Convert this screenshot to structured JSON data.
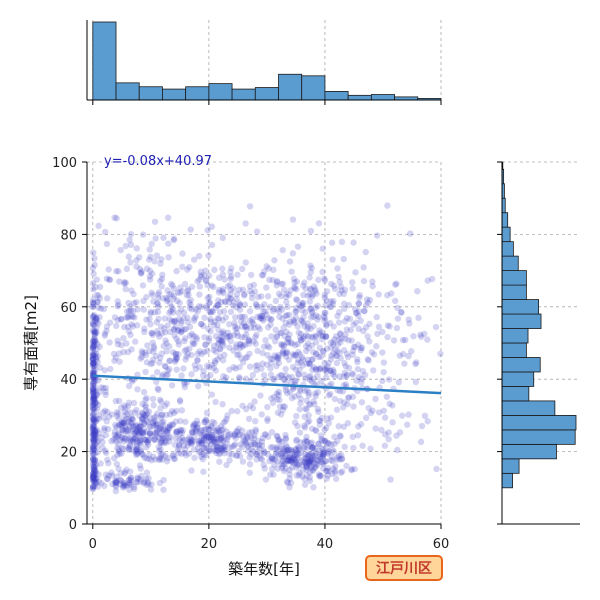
{
  "chart_data": {
    "type": "scatter",
    "xlabel": "築年数[年]",
    "ylabel": "専有面積[m2]",
    "xlim": [
      -1,
      60
    ],
    "ylim": [
      0,
      100
    ],
    "x_ticks": [
      0,
      20,
      40,
      60
    ],
    "y_ticks": [
      0,
      20,
      40,
      60,
      80,
      100
    ],
    "grid": true,
    "annotation": "y=-0.08x+40.97",
    "badge": "江戸川区",
    "regression": {
      "slope": -0.08,
      "intercept": 40.97,
      "x_range": [
        0,
        60
      ]
    },
    "colors": {
      "points": "#3b3bc4",
      "line": "#2b7fc4",
      "bars": "#5a9bd0",
      "badge_bg": "#ffd59a",
      "badge_border": "#e8651e",
      "badge_text": "#c0392b"
    },
    "clusters": [
      {
        "cx": 0,
        "cy": 30,
        "sx": 0.4,
        "sy": 18,
        "n": 260
      },
      {
        "cx": 8,
        "cy": 25,
        "sx": 4,
        "sy": 4,
        "n": 280
      },
      {
        "cx": 20,
        "cy": 23,
        "sx": 5,
        "sy": 3,
        "n": 240
      },
      {
        "cx": 36,
        "cy": 18,
        "sx": 4,
        "sy": 3,
        "n": 260
      },
      {
        "cx": 25,
        "cy": 55,
        "sx": 11,
        "sy": 10,
        "n": 520
      },
      {
        "cx": 10,
        "cy": 55,
        "sx": 7,
        "sy": 14,
        "n": 280
      },
      {
        "cx": 37,
        "cy": 45,
        "sx": 5,
        "sy": 12,
        "n": 320
      },
      {
        "cx": 45,
        "cy": 45,
        "sx": 9,
        "sy": 18,
        "n": 180
      },
      {
        "cx": 5,
        "cy": 12,
        "sx": 3,
        "sy": 1.5,
        "n": 80
      }
    ],
    "x_hist": {
      "bin_edges": [
        0,
        4,
        8,
        12,
        16,
        20,
        24,
        28,
        32,
        36,
        40,
        44,
        48,
        52,
        56,
        60
      ],
      "counts": [
        100,
        22,
        17,
        14,
        17,
        21,
        14,
        16,
        33,
        31,
        11,
        6,
        7,
        4,
        2
      ]
    },
    "y_hist": {
      "bin_edges": [
        10,
        14,
        18,
        22,
        26,
        30,
        34,
        38,
        42,
        46,
        50,
        54,
        58,
        62,
        66,
        70,
        74,
        78,
        82,
        86,
        90,
        94,
        98,
        100
      ],
      "counts": [
        13,
        21,
        67,
        90,
        91,
        65,
        33,
        39,
        47,
        30,
        32,
        48,
        45,
        30,
        30,
        20,
        14,
        10,
        7,
        4,
        3,
        2,
        1
      ]
    }
  }
}
